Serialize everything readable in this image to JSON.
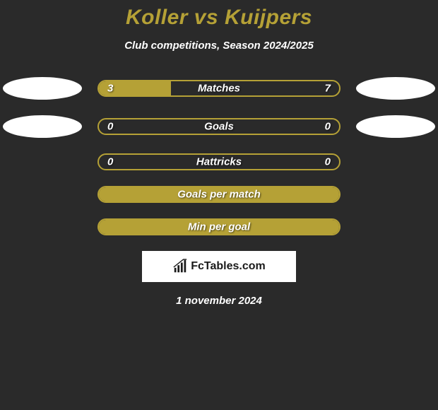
{
  "background_color": "#2a2a2a",
  "accent_color": "#b5a136",
  "text_color": "#ffffff",
  "title": "Koller vs Kuijpers",
  "subtitle": "Club competitions, Season 2024/2025",
  "bars": [
    {
      "label": "Matches",
      "left_value": "3",
      "right_value": "7",
      "left_pct": 30,
      "right_pct": 0,
      "show_ellipses": true
    },
    {
      "label": "Goals",
      "left_value": "0",
      "right_value": "0",
      "left_pct": 0,
      "right_pct": 0,
      "show_ellipses": true
    },
    {
      "label": "Hattricks",
      "left_value": "0",
      "right_value": "0",
      "left_pct": 0,
      "right_pct": 0,
      "show_ellipses": false
    },
    {
      "label": "Goals per match",
      "left_value": "",
      "right_value": "",
      "left_pct": 100,
      "right_pct": 0,
      "show_ellipses": false
    },
    {
      "label": "Min per goal",
      "left_value": "",
      "right_value": "",
      "left_pct": 100,
      "right_pct": 0,
      "show_ellipses": false
    }
  ],
  "logo_text": "FcTables.com",
  "date_text": "1 november 2024",
  "bar_track_width": 344,
  "ellipse_color": "#ffffff"
}
